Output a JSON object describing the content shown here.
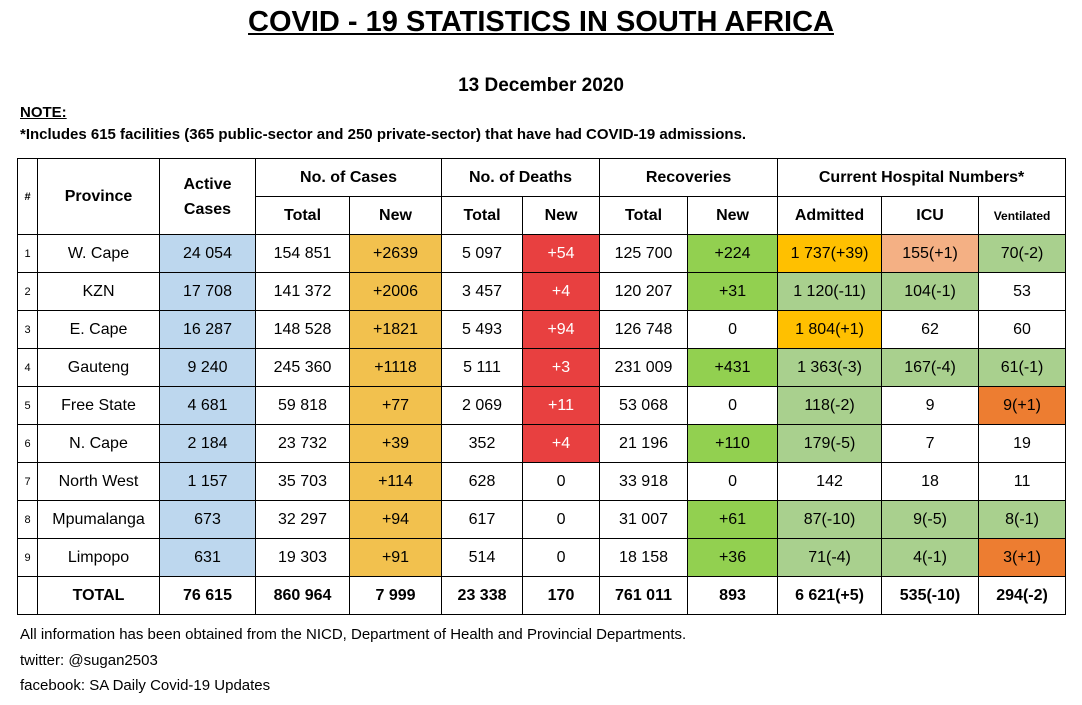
{
  "title": "COVID - 19 STATISTICS IN SOUTH AFRICA",
  "date": "13 December 2020",
  "note": {
    "label": "NOTE:",
    "text": "*Includes 615 facilities (365 public-sector and 250 private-sector) that have had COVID-19 admissions."
  },
  "headers": {
    "num": "#",
    "province": "Province",
    "active": "Active Cases",
    "cases": "No. of Cases",
    "deaths": "No. of Deaths",
    "recoveries": "Recoveries",
    "hospital": "Current Hospital Numbers*",
    "total": "Total",
    "new": "New",
    "admitted": "Admitted",
    "icu": "ICU",
    "ventilated": "Ventilated"
  },
  "rows": [
    {
      "num": "1",
      "province": "W. Cape",
      "active": "24 054",
      "cases_total": "154 851",
      "cases_new": "+2639",
      "deaths_total": "5 097",
      "deaths_new": "+54",
      "rec_total": "125 700",
      "rec_new": "+224",
      "admitted": "1 737(+39)",
      "icu": "155(+1)",
      "ventilated": "70(-2)"
    },
    {
      "num": "2",
      "province": "KZN",
      "active": "17 708",
      "cases_total": "141 372",
      "cases_new": "+2006",
      "deaths_total": "3 457",
      "deaths_new": "+4",
      "rec_total": "120 207",
      "rec_new": "+31",
      "admitted": "1 120(-11)",
      "icu": "104(-1)",
      "ventilated": "53"
    },
    {
      "num": "3",
      "province": "E. Cape",
      "active": "16 287",
      "cases_total": "148 528",
      "cases_new": "+1821",
      "deaths_total": "5 493",
      "deaths_new": "+94",
      "rec_total": "126 748",
      "rec_new": "0",
      "admitted": "1 804(+1)",
      "icu": "62",
      "ventilated": "60"
    },
    {
      "num": "4",
      "province": "Gauteng",
      "active": "9 240",
      "cases_total": "245 360",
      "cases_new": "+1118",
      "deaths_total": "5 111",
      "deaths_new": "+3",
      "rec_total": "231 009",
      "rec_new": "+431",
      "admitted": "1 363(-3)",
      "icu": "167(-4)",
      "ventilated": "61(-1)"
    },
    {
      "num": "5",
      "province": "Free State",
      "active": "4 681",
      "cases_total": "59 818",
      "cases_new": "+77",
      "deaths_total": "2 069",
      "deaths_new": "+11",
      "rec_total": "53 068",
      "rec_new": "0",
      "admitted": "118(-2)",
      "icu": "9",
      "ventilated": "9(+1)"
    },
    {
      "num": "6",
      "province": "N. Cape",
      "active": "2 184",
      "cases_total": "23 732",
      "cases_new": "+39",
      "deaths_total": "352",
      "deaths_new": "+4",
      "rec_total": "21 196",
      "rec_new": "+110",
      "admitted": "179(-5)",
      "icu": "7",
      "ventilated": "19"
    },
    {
      "num": "7",
      "province": "North West",
      "active": "1 157",
      "cases_total": "35 703",
      "cases_new": "+114",
      "deaths_total": "628",
      "deaths_new": "0",
      "rec_total": "33 918",
      "rec_new": "0",
      "admitted": "142",
      "icu": "18",
      "ventilated": "11"
    },
    {
      "num": "8",
      "province": "Mpumalanga",
      "active": "673",
      "cases_total": "32 297",
      "cases_new": "+94",
      "deaths_total": "617",
      "deaths_new": "0",
      "rec_total": "31 007",
      "rec_new": "+61",
      "admitted": "87(-10)",
      "icu": "9(-5)",
      "ventilated": "8(-1)"
    },
    {
      "num": "9",
      "province": "Limpopo",
      "active": "631",
      "cases_total": "19 303",
      "cases_new": "+91",
      "deaths_total": "514",
      "deaths_new": "0",
      "rec_total": "18 158",
      "rec_new": "+36",
      "admitted": "71(-4)",
      "icu": "4(-1)",
      "ventilated": "3(+1)"
    }
  ],
  "total": {
    "label": "TOTAL",
    "active": "76 615",
    "cases_total": "860 964",
    "cases_new": "7 999",
    "deaths_total": "23 338",
    "deaths_new": "170",
    "rec_total": "761 011",
    "rec_new": "893",
    "admitted": "6 621(+5)",
    "icu": "535(-10)",
    "ventilated": "294(-2)"
  },
  "footer": {
    "source": "All information has been obtained from the NICD, Department of Health and Provincial Departments.",
    "twitter": "twitter: @sugan2503",
    "facebook": "facebook: SA Daily Covid-19 Updates"
  },
  "colors": {
    "active": "#bdd7ee",
    "cases_new": "#f2c14e",
    "deaths_new": "#e84040",
    "recoveries_new": "#92d050",
    "hospital_decrease": "#a9d08e",
    "hospital_increase": "#ffc000",
    "icu_increase": "#f4b084",
    "ventilated_increase": "#ed7d31"
  }
}
